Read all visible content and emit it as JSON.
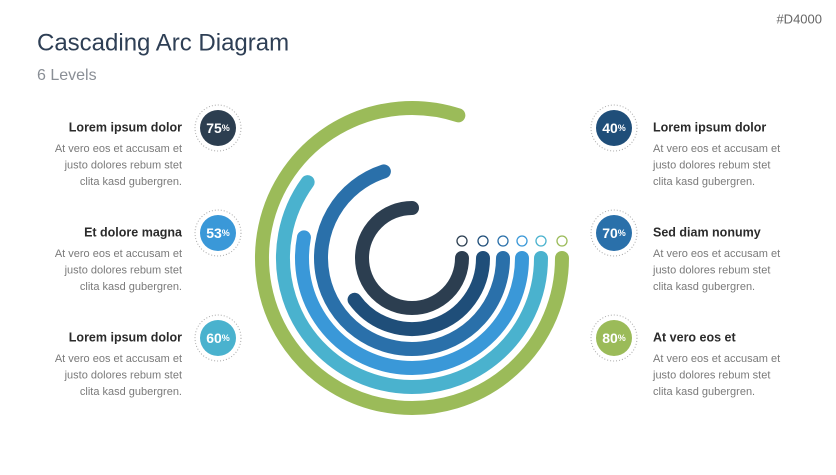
{
  "header": {
    "title": "Cascading Arc Diagram",
    "subtitle": "6 Levels",
    "tag": "#D4000"
  },
  "unit": "%",
  "items": [
    {
      "side": "left",
      "title": "Lorem ipsum dolor",
      "value": 75,
      "color": "#2c3e50",
      "ring": 0,
      "text": [
        "At vero eos et accusam et",
        "justo dolores rebum stet",
        "clita kasd gubergren."
      ]
    },
    {
      "side": "left",
      "title": "Et dolore magna",
      "value": 53,
      "color": "#3a98d8",
      "ring": 3,
      "text": [
        "At vero eos et accusam et",
        "justo dolores rebum stet",
        "clita kasd gubergren."
      ]
    },
    {
      "side": "left",
      "title": "Lorem ipsum dolor",
      "value": 60,
      "color": "#4ab2ce",
      "ring": 4,
      "text": [
        "At vero eos et accusam et",
        "justo dolores rebum stet",
        "clita kasd gubergren."
      ]
    },
    {
      "side": "right",
      "title": "Lorem ipsum dolor",
      "value": 40,
      "color": "#1f4e79",
      "ring": 1,
      "text": [
        "At vero eos et accusam et",
        "justo dolores rebum stet",
        "clita kasd gubergren."
      ]
    },
    {
      "side": "right",
      "title": "Sed diam nonumy",
      "value": 70,
      "color": "#2a70aa",
      "ring": 2,
      "text": [
        "At vero eos et accusam et",
        "justo dolores rebum stet",
        "clita kasd gubergren."
      ]
    },
    {
      "side": "right",
      "title": "At vero eos et",
      "value": 80,
      "color": "#9bbb59",
      "ring": 5,
      "text": [
        "At vero eos et accusam et",
        "justo dolores rebum stet",
        "clita kasd gubergren."
      ]
    }
  ]
}
